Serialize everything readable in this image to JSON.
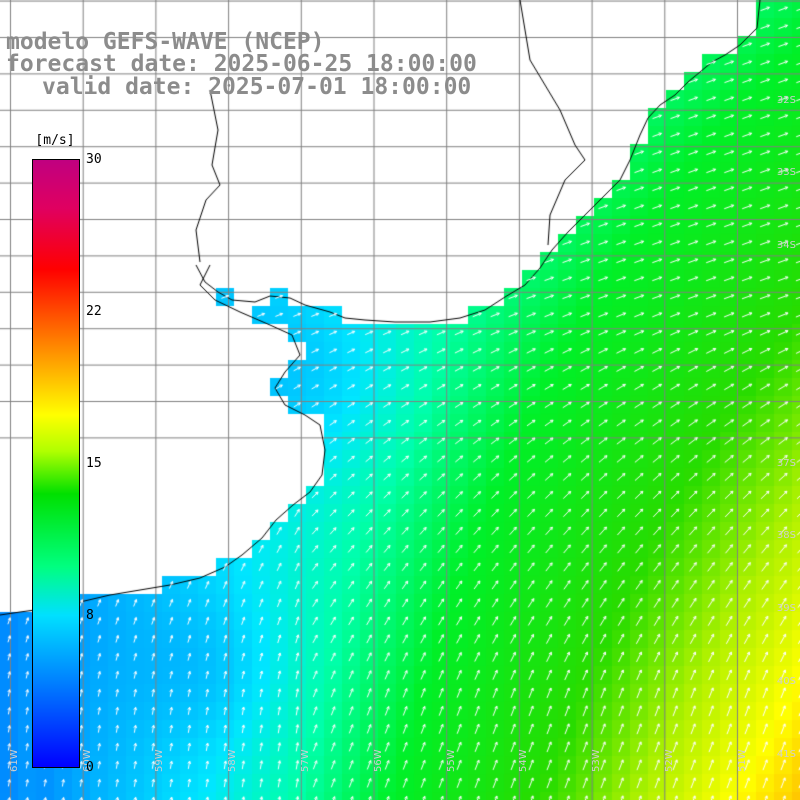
{
  "title": {
    "line1": "modelo GEFS-WAVE (NCEP)",
    "line2": "forecast date: 2025-06-25 18:00:00",
    "line3": "valid date: 2025-07-01 18:00:00"
  },
  "colorbar": {
    "unit": "[m/s]",
    "ticks": [
      "30",
      "22",
      "15",
      "8",
      "0"
    ],
    "tick_values": [
      30,
      22,
      15,
      8,
      0
    ],
    "min": 0,
    "max": 30,
    "colors": [
      "#0000ff",
      "#0080ff",
      "#00e0ff",
      "#00ff80",
      "#00e000",
      "#ffff00",
      "#ff8000",
      "#ff0000",
      "#c00080"
    ]
  },
  "map": {
    "lat_labels": [
      "32S",
      "33S",
      "34S",
      "37S",
      "38S",
      "39S",
      "40S",
      "41S"
    ],
    "lon_labels": [
      "61W",
      "60W",
      "59W",
      "58W",
      "57W",
      "56W",
      "55W",
      "54W",
      "53W",
      "52W",
      "51W"
    ],
    "land_color": "#ffffff",
    "grid_color": "#808080",
    "coast_color": "#000000",
    "arrow_color": "#ffffff"
  }
}
